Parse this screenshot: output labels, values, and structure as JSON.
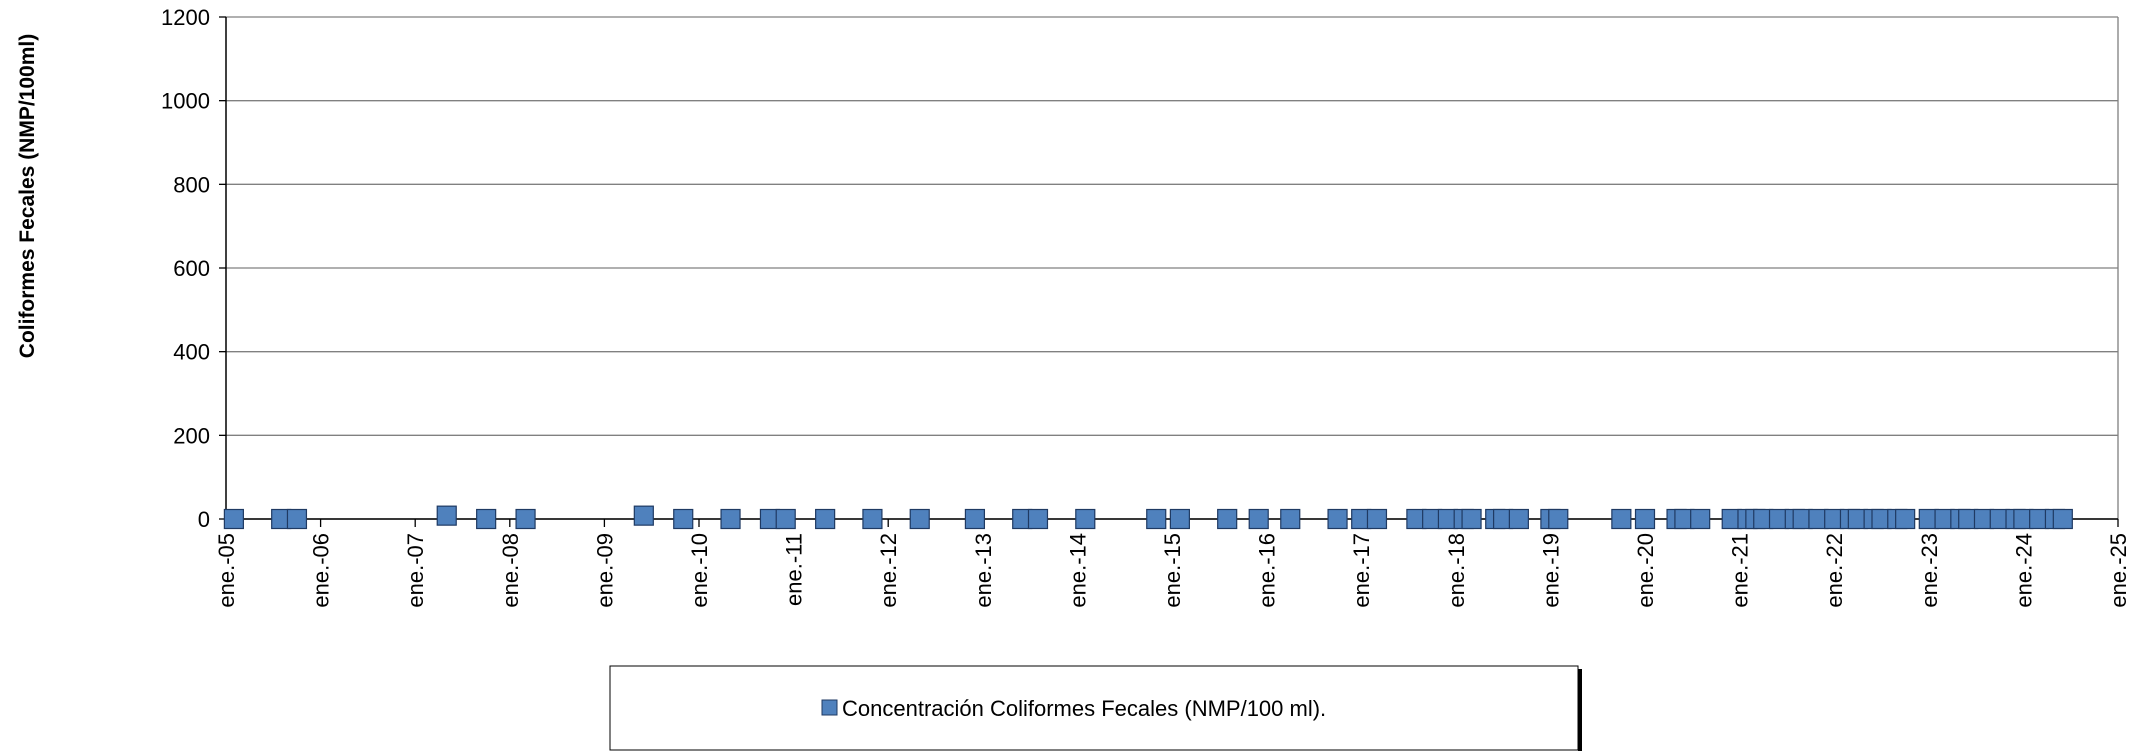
{
  "chart_data": {
    "type": "scatter",
    "y_label": "Coliformes Fecales (NMP/100ml)",
    "series": [
      {
        "name": "Concentración Coliformes Fecales (NMP/100 ml).",
        "color": "#4f81bd",
        "x": [
          "2005-02",
          "2005-08",
          "2005-10",
          "2007-05",
          "2007-10",
          "2008-03",
          "2009-06",
          "2009-11",
          "2010-05",
          "2010-10",
          "2010-12",
          "2011-05",
          "2011-11",
          "2012-05",
          "2012-12",
          "2013-06",
          "2013-08",
          "2014-02",
          "2014-11",
          "2015-02",
          "2015-08",
          "2015-12",
          "2016-04",
          "2016-10",
          "2017-01",
          "2017-03",
          "2017-08",
          "2017-10",
          "2017-12",
          "2018-02",
          "2018-03",
          "2018-06",
          "2018-07",
          "2018-09",
          "2019-01",
          "2019-02",
          "2019-10",
          "2020-01",
          "2020-05",
          "2020-06",
          "2020-08",
          "2020-12",
          "2021-02",
          "2021-03",
          "2021-04",
          "2021-06",
          "2021-08",
          "2021-09",
          "2021-11",
          "2022-01",
          "2022-03",
          "2022-04",
          "2022-06",
          "2022-07",
          "2022-09",
          "2022-10",
          "2023-01",
          "2023-03",
          "2023-05",
          "2023-06",
          "2023-08",
          "2023-10",
          "2023-12",
          "2024-01",
          "2024-03",
          "2024-05",
          "2024-06"
        ],
        "values": [
          0,
          0,
          0,
          8,
          0,
          0,
          8,
          0,
          0,
          0,
          0,
          0,
          0,
          0,
          0,
          0,
          0,
          0,
          0,
          0,
          0,
          0,
          0,
          0,
          0,
          0,
          0,
          0,
          0,
          0,
          0,
          0,
          0,
          0,
          0,
          0,
          0,
          0,
          0,
          0,
          0,
          0,
          0,
          0,
          0,
          0,
          0,
          0,
          0,
          0,
          0,
          0,
          0,
          0,
          0,
          0,
          0,
          0,
          0,
          0,
          0,
          0,
          0,
          0,
          0,
          0,
          0
        ]
      }
    ],
    "xlim": [
      "2005-01",
      "2025-01"
    ],
    "xticks": [
      {
        "value": "2005-01",
        "label": "ene.-05"
      },
      {
        "value": "2006-01",
        "label": "ene.-06"
      },
      {
        "value": "2007-01",
        "label": "ene.-07"
      },
      {
        "value": "2008-01",
        "label": "ene.-08"
      },
      {
        "value": "2009-01",
        "label": "ene.-09"
      },
      {
        "value": "2010-01",
        "label": "ene.-10"
      },
      {
        "value": "2011-01",
        "label": "ene.-11"
      },
      {
        "value": "2012-01",
        "label": "ene.-12"
      },
      {
        "value": "2013-01",
        "label": "ene.-13"
      },
      {
        "value": "2014-01",
        "label": "ene.-14"
      },
      {
        "value": "2015-01",
        "label": "ene.-15"
      },
      {
        "value": "2016-01",
        "label": "ene.-16"
      },
      {
        "value": "2017-01",
        "label": "ene.-17"
      },
      {
        "value": "2018-01",
        "label": "ene.-18"
      },
      {
        "value": "2019-01",
        "label": "ene.-19"
      },
      {
        "value": "2020-01",
        "label": "ene.-20"
      },
      {
        "value": "2021-01",
        "label": "ene.-21"
      },
      {
        "value": "2022-01",
        "label": "ene.-22"
      },
      {
        "value": "2023-01",
        "label": "ene.-23"
      },
      {
        "value": "2024-01",
        "label": "ene.-24"
      },
      {
        "value": "2025-01",
        "label": "ene.-25"
      }
    ],
    "ylim": [
      0,
      1200
    ],
    "yticks": [
      0,
      200,
      400,
      600,
      800,
      1000,
      1200
    ],
    "grid": true
  }
}
